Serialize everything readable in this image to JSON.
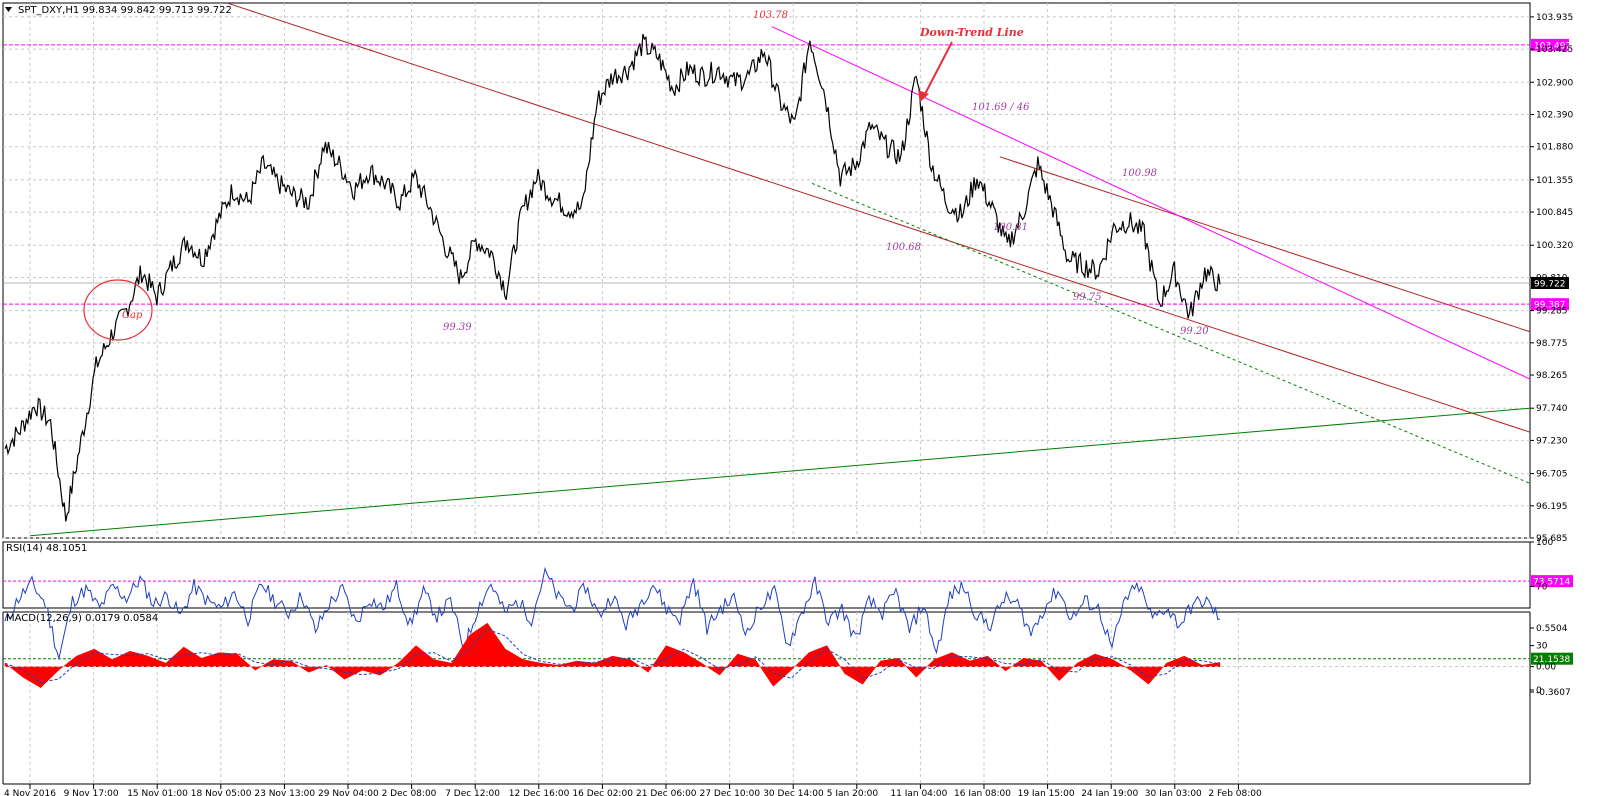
{
  "chart_data": [
    {
      "type": "line",
      "panel": "price",
      "title": "SPT_DXY,H1  99.834 99.842 99.713 99.722",
      "ylim": [
        95.685,
        104.2
      ],
      "y_ticks": [
        "103.935",
        "103.425",
        "102.900",
        "102.390",
        "101.880",
        "101.355",
        "100.845",
        "100.320",
        "99.810",
        "99.285",
        "98.775",
        "98.265",
        "97.740",
        "97.230",
        "96.705",
        "96.195",
        "95.685"
      ],
      "current_price": "99.722",
      "grid": true,
      "series": [
        {
          "values": [
            97.1,
            97.4,
            97.8,
            97.5,
            96.0,
            97.2,
            98.4,
            98.9,
            99.3,
            99.9,
            99.5,
            100.0,
            100.4,
            100.1,
            100.7,
            101.2,
            101.0,
            101.6,
            101.3,
            101.1,
            101.0,
            101.9,
            101.6,
            101.2,
            101.5,
            101.3,
            101.0,
            101.4,
            100.9,
            100.3,
            99.8,
            100.4,
            100.2,
            99.6,
            100.8,
            101.4,
            101.1,
            100.9,
            100.9,
            102.6,
            103.0,
            103.1,
            103.5,
            103.3,
            102.8,
            103.1,
            103.0,
            103.1,
            102.9,
            103.0,
            103.4,
            102.6,
            102.2,
            103.6,
            102.7,
            101.4,
            101.6,
            102.2,
            101.9,
            101.7,
            103.0,
            101.6,
            101.0,
            100.8,
            101.4,
            100.9,
            100.3,
            100.8,
            101.6,
            100.9,
            100.1,
            100.0,
            99.9,
            100.6,
            100.7,
            100.5,
            99.4,
            99.9,
            99.2,
            99.9,
            99.7
          ]
        }
      ],
      "horizontal_levels": [
        {
          "value": 103.492,
          "label": "103.492",
          "color": "#ff00ff"
        },
        {
          "value": 99.387,
          "label": "99.387",
          "color": "#ff00ff"
        }
      ],
      "annotations": [
        {
          "text": "103.78",
          "color": "#e8303a"
        },
        {
          "text": "Down-Trend Line",
          "color": "#e8303a"
        },
        {
          "text": "101.69 / 46",
          "color": "#a040a0"
        },
        {
          "text": "100.98",
          "color": "#a040a0"
        },
        {
          "text": "100.81",
          "color": "#a040a0"
        },
        {
          "text": "100.68",
          "color": "#a040a0"
        },
        {
          "text": "99.75",
          "color": "#a040a0"
        },
        {
          "text": "99.20",
          "color": "#a040a0"
        },
        {
          "text": "99.39",
          "color": "#a040a0"
        },
        {
          "text": "Gap",
          "color": "#e8303a"
        }
      ],
      "x_ticks": [
        "4 Nov 2016",
        "9 Nov 17:00",
        "15 Nov 01:00",
        "18 Nov 05:00",
        "23 Nov 13:00",
        "29 Nov 04:00",
        "2 Dec 08:00",
        "7 Dec 12:00",
        "12 Dec 16:00",
        "16 Dec 02:00",
        "21 Dec 06:00",
        "27 Dec 10:00",
        "30 Dec 14:00",
        "5 Jan 20:00",
        "11 Jan 04:00",
        "16 Jan 08:00",
        "19 Jan 15:00",
        "24 Jan 19:00",
        "30 Jan 03:00",
        "2 Feb 08:00"
      ]
    },
    {
      "type": "line",
      "panel": "rsi",
      "title": "RSI(14) 48.1051",
      "ylim": [
        0,
        100
      ],
      "y_ticks": [
        "100",
        "70",
        "30",
        "0"
      ],
      "levels": [
        {
          "value": 73.5714,
          "label": "73.5714",
          "color": "#ff00ff"
        },
        {
          "value": 21.1538,
          "label": "21.1538",
          "color": "#008000"
        }
      ],
      "series": [
        {
          "values": [
            45,
            62,
            72,
            58,
            22,
            60,
            68,
            55,
            70,
            62,
            75,
            58,
            64,
            50,
            70,
            60,
            55,
            66,
            48,
            72,
            60,
            52,
            64,
            40,
            58,
            68,
            45,
            62,
            55,
            70,
            44,
            66,
            50,
            60,
            28,
            55,
            72,
            52,
            60,
            48,
            80,
            62,
            55,
            70,
            50,
            64,
            44,
            58,
            72,
            55,
            48,
            74,
            42,
            55,
            62,
            38,
            58,
            66,
            30,
            52,
            72,
            46,
            55,
            34,
            60,
            52,
            66,
            40,
            58,
            25,
            64,
            70,
            50,
            44,
            62,
            58,
            38,
            56,
            68,
            48,
            60,
            55,
            28,
            62,
            70,
            48,
            56,
            44,
            58,
            60,
            48
          ]
        }
      ]
    },
    {
      "type": "area",
      "panel": "macd",
      "title": "MACD(12,26,9) 0.0179 0.0584",
      "ylim": [
        -0.3607,
        0.5504
      ],
      "y_ticks": [
        "0.5504",
        "0.00",
        "-0.3607"
      ],
      "series": [
        {
          "values": [
            0.05,
            -0.15,
            -0.3,
            -0.05,
            0.15,
            0.25,
            0.1,
            0.22,
            0.15,
            0.05,
            0.28,
            0.12,
            0.2,
            0.18,
            -0.05,
            0.1,
            0.08,
            -0.08,
            0.02,
            -0.18,
            -0.05,
            -0.12,
            0.05,
            0.3,
            0.1,
            0.05,
            0.45,
            0.62,
            0.25,
            0.1,
            0.05,
            0.02,
            0.08,
            0.05,
            0.15,
            0.1,
            -0.08,
            0.3,
            0.2,
            0.05,
            -0.12,
            0.18,
            0.1,
            -0.28,
            -0.05,
            0.2,
            0.3,
            -0.1,
            -0.25,
            0.08,
            0.12,
            -0.15,
            0.1,
            0.2,
            0.08,
            0.15,
            -0.06,
            0.12,
            0.08,
            -0.2,
            0.05,
            0.18,
            0.1,
            -0.05,
            -0.25,
            0.05,
            0.15,
            0.02,
            0.06
          ]
        }
      ]
    }
  ]
}
